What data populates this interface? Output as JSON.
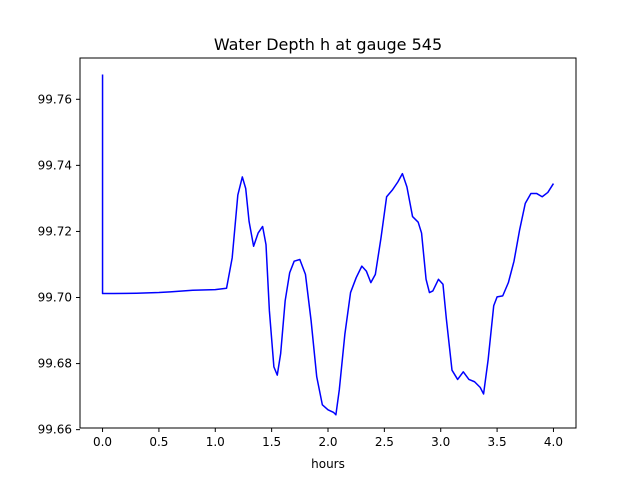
{
  "chart_data": {
    "type": "line",
    "title": "Water Depth h at gauge 545",
    "xlabel": "hours",
    "ylabel": "",
    "xlim": [
      -0.2,
      4.2
    ],
    "ylim": [
      99.6605,
      99.7725
    ],
    "xticks": [
      0.0,
      0.5,
      1.0,
      1.5,
      2.0,
      2.5,
      3.0,
      3.5,
      4.0
    ],
    "xtick_labels": [
      "0.0",
      "0.5",
      "1.0",
      "1.5",
      "2.0",
      "2.5",
      "3.0",
      "3.5",
      "4.0"
    ],
    "yticks": [
      99.66,
      99.68,
      99.7,
      99.72,
      99.74,
      99.76
    ],
    "ytick_labels": [
      "99.66",
      "99.68",
      "99.70",
      "99.72",
      "99.74",
      "99.76"
    ],
    "grid": false,
    "series": [
      {
        "color": "#0000ff",
        "x": [
          0.0,
          0.0,
          0.1,
          0.3,
          0.5,
          0.6,
          0.8,
          1.0,
          1.1,
          1.15,
          1.2,
          1.24,
          1.27,
          1.3,
          1.34,
          1.38,
          1.42,
          1.45,
          1.48,
          1.52,
          1.55,
          1.58,
          1.62,
          1.66,
          1.7,
          1.75,
          1.8,
          1.85,
          1.9,
          1.95,
          2.0,
          2.05,
          2.07,
          2.1,
          2.15,
          2.2,
          2.25,
          2.3,
          2.34,
          2.38,
          2.42,
          2.47,
          2.52,
          2.57,
          2.62,
          2.66,
          2.7,
          2.75,
          2.8,
          2.83,
          2.87,
          2.9,
          2.93,
          2.98,
          3.02,
          3.05,
          3.1,
          3.15,
          3.2,
          3.25,
          3.3,
          3.35,
          3.38,
          3.42,
          3.47,
          3.5,
          3.55,
          3.6,
          3.65,
          3.7,
          3.75,
          3.8,
          3.85,
          3.9,
          3.95,
          4.0
        ],
        "values": [
          99.7675,
          99.7012,
          99.7012,
          99.7013,
          99.7015,
          99.7017,
          99.7022,
          99.7024,
          99.7028,
          99.712,
          99.731,
          99.7365,
          99.733,
          99.723,
          99.7155,
          99.7195,
          99.7215,
          99.716,
          99.696,
          99.679,
          99.6765,
          99.683,
          99.699,
          99.7075,
          99.711,
          99.7115,
          99.707,
          99.693,
          99.676,
          99.6675,
          99.666,
          99.6652,
          99.6645,
          99.672,
          99.689,
          99.7015,
          99.706,
          99.7095,
          99.708,
          99.7045,
          99.707,
          99.718,
          99.7305,
          99.7325,
          99.735,
          99.7375,
          99.7335,
          99.7245,
          99.7228,
          99.7195,
          99.7055,
          99.7015,
          99.702,
          99.7055,
          99.704,
          99.6935,
          99.678,
          99.6752,
          99.6775,
          99.6752,
          99.6745,
          99.6728,
          99.6708,
          99.681,
          99.6975,
          99.7002,
          99.7005,
          99.7045,
          99.711,
          99.7205,
          99.7285,
          99.7315,
          99.7315,
          99.7305,
          99.7318,
          99.7345
        ]
      }
    ]
  }
}
